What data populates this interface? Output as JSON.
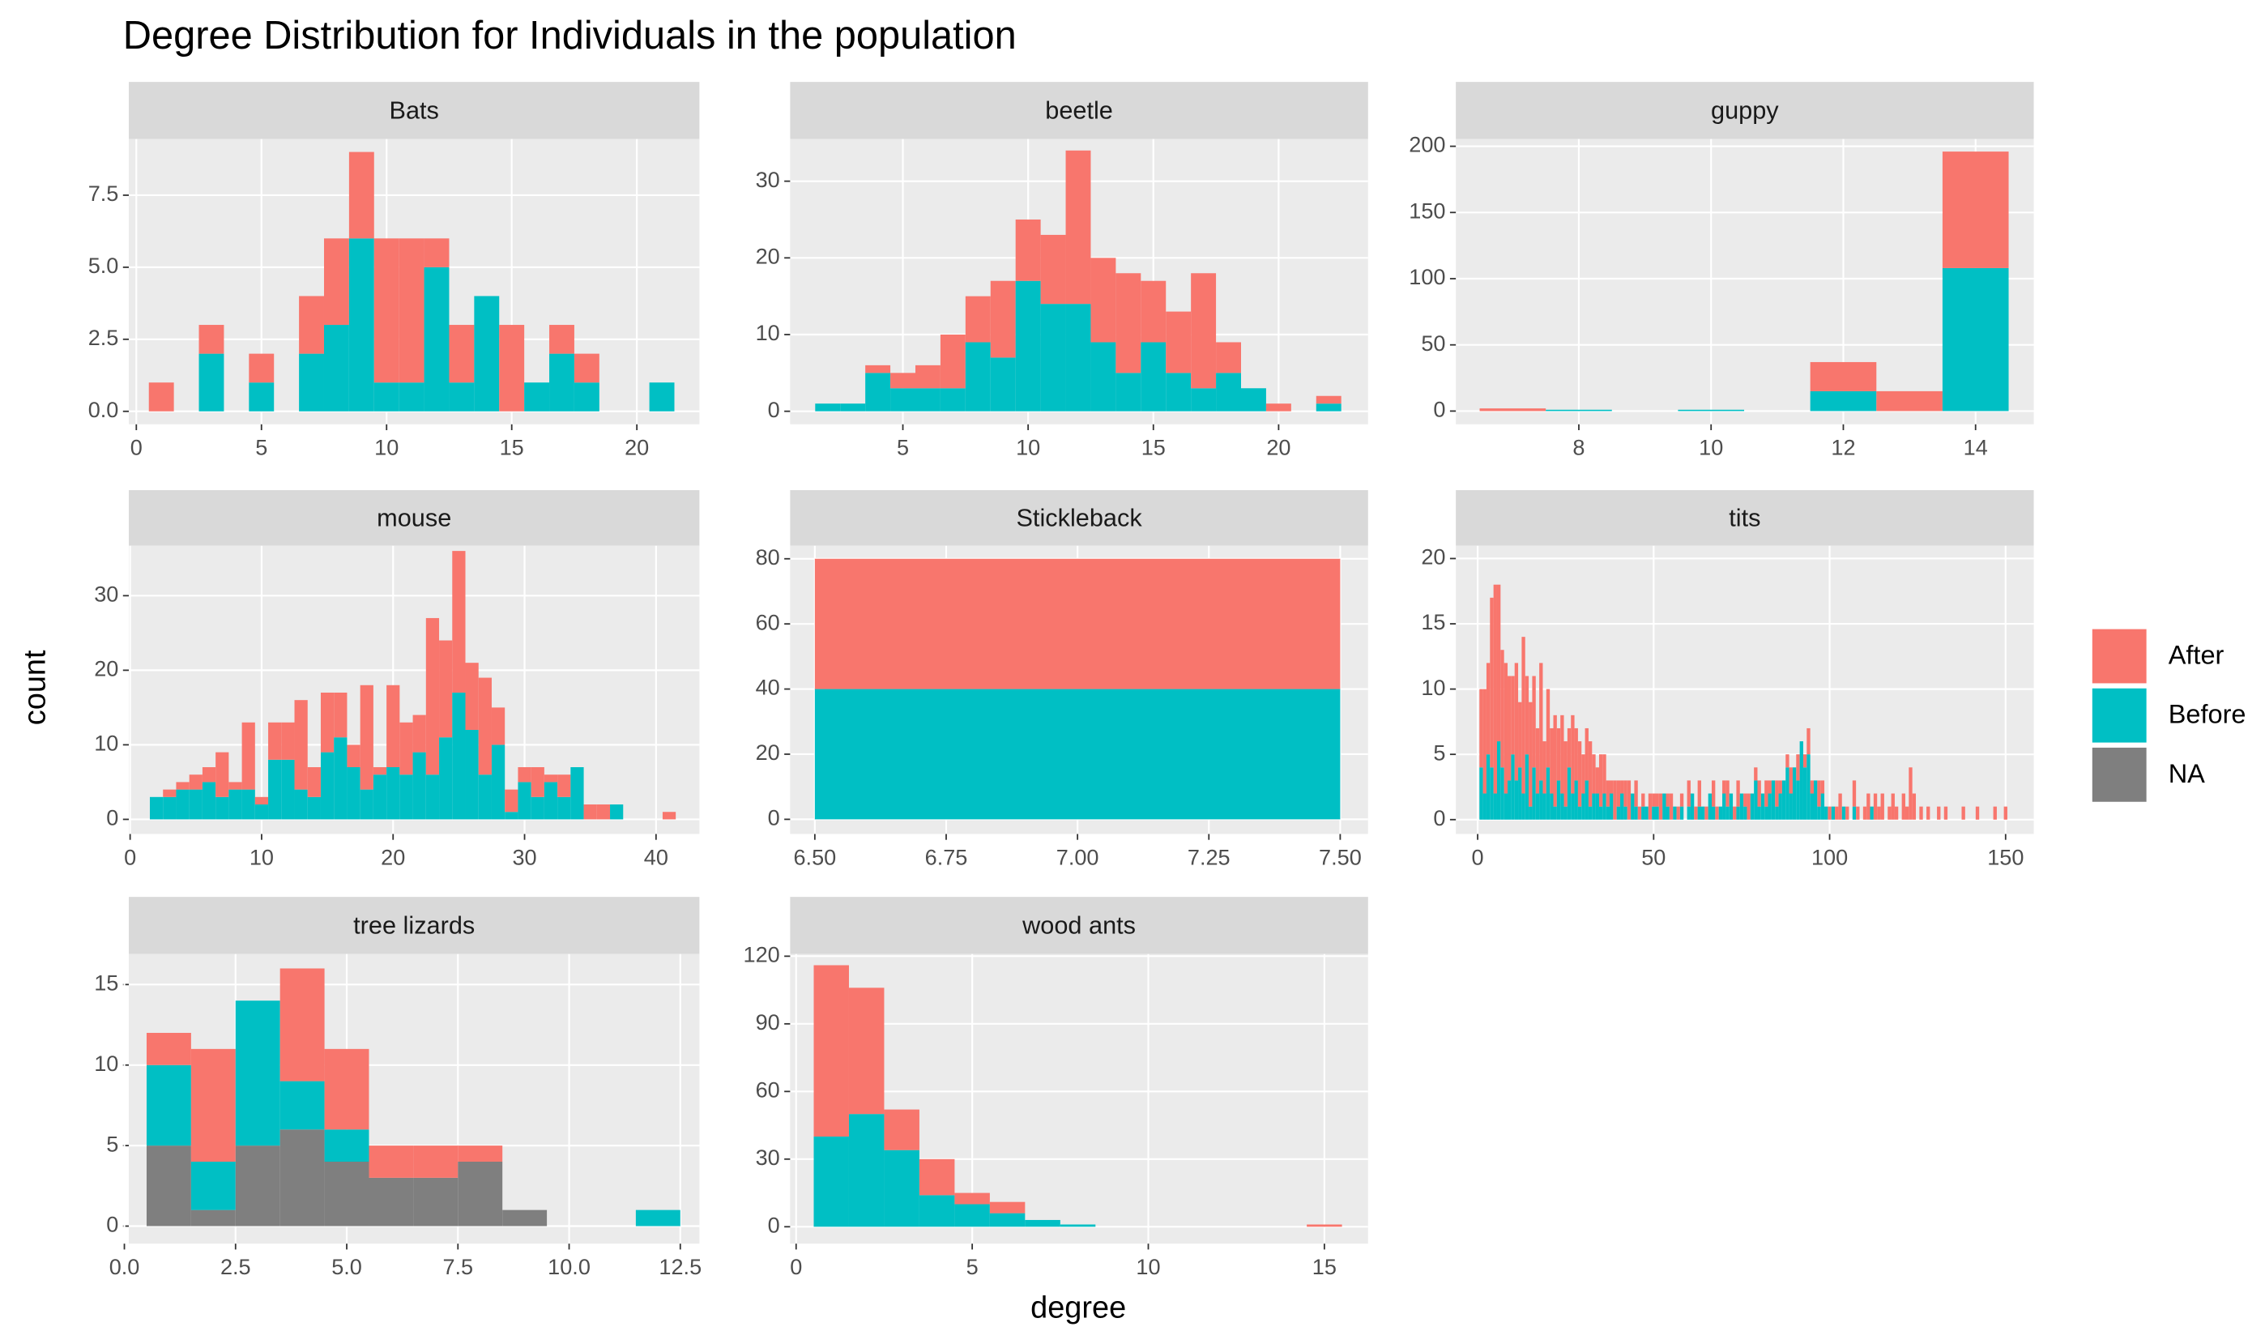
{
  "title": "Degree Distribution for Individuals in the population",
  "x_label": "degree",
  "y_label": "count",
  "chart_data": [
    {
      "type": "histogram",
      "title": "Bats",
      "bins": [
        0.5,
        1.5,
        2.5,
        3.5,
        4.5,
        5.5,
        6.5,
        7.5,
        8.5,
        9.5,
        10.5,
        11.5,
        12.5,
        13.5,
        14.5,
        15.5,
        16.5,
        17.5,
        18.5,
        19.5,
        20.5,
        21.5
      ],
      "series": [
        {
          "name": "After",
          "color": "#F8766D",
          "values": [
            1,
            0,
            1,
            0,
            1,
            0,
            2,
            3,
            3,
            5,
            5,
            1,
            2,
            0,
            3,
            0,
            1,
            1,
            0,
            0,
            0
          ]
        },
        {
          "name": "Before",
          "color": "#00BFC4",
          "values": [
            0,
            0,
            2,
            0,
            1,
            0,
            2,
            3,
            6,
            1,
            1,
            5,
            1,
            4,
            0,
            1,
            2,
            1,
            0,
            0,
            1
          ]
        }
      ],
      "xlim": [
        -0.3,
        22.5
      ],
      "ylim": [
        -0.45,
        9.45
      ],
      "xticks": [
        0,
        5,
        10,
        15,
        20
      ],
      "yticks": [
        {
          "value": 0,
          "label": "0.0"
        },
        {
          "value": 2.5,
          "label": "2.5"
        },
        {
          "value": 5,
          "label": "5.0"
        },
        {
          "value": 7.5,
          "label": "7.5"
        }
      ]
    },
    {
      "type": "histogram",
      "title": "beetle",
      "bins": [
        1.5,
        2.5,
        3.5,
        4.5,
        5.5,
        6.5,
        7.5,
        8.5,
        9.5,
        10.5,
        11.5,
        12.5,
        13.5,
        14.5,
        15.5,
        16.5,
        17.5,
        18.5,
        19.5,
        20.5,
        21.5,
        22.5
      ],
      "series": [
        {
          "name": "After",
          "color": "#F8766D",
          "values": [
            0,
            0,
            1,
            2,
            3,
            7,
            6,
            10,
            8,
            9,
            20,
            11,
            13,
            8,
            8,
            15,
            4,
            0,
            1,
            0,
            1
          ]
        },
        {
          "name": "Before",
          "color": "#00BFC4",
          "values": [
            1,
            1,
            5,
            3,
            3,
            3,
            9,
            7,
            17,
            14,
            14,
            9,
            5,
            9,
            5,
            3,
            5,
            3,
            0,
            0,
            1
          ]
        }
      ],
      "xlim": [
        0.5,
        23.57
      ],
      "ylim": [
        -1.7,
        35.5
      ],
      "xticks": [
        5,
        10,
        15,
        20
      ],
      "yticks": [
        0,
        10,
        20,
        30
      ]
    },
    {
      "type": "histogram",
      "title": "guppy",
      "bins": [
        6.5,
        7.5,
        8.5,
        9.5,
        10.5,
        11.5,
        12.5,
        13.5,
        14.5
      ],
      "series": [
        {
          "name": "After",
          "color": "#F8766D",
          "values": [
            2,
            0,
            0,
            0,
            0,
            22,
            15,
            88
          ]
        },
        {
          "name": "Before",
          "color": "#00BFC4",
          "values": [
            0,
            1,
            0,
            1,
            0,
            15,
            0,
            108
          ]
        }
      ],
      "xlim": [
        6.14,
        14.88
      ],
      "ylim": [
        -10,
        205.5
      ],
      "xticks": [
        8,
        10,
        12,
        14
      ],
      "yticks": [
        0,
        50,
        100,
        150,
        200
      ]
    },
    {
      "type": "histogram",
      "title": "mouse",
      "bins": [
        1.5,
        2.5,
        3.5,
        4.5,
        5.5,
        6.5,
        7.5,
        8.5,
        9.5,
        10.5,
        11.5,
        12.5,
        13.5,
        14.5,
        15.5,
        16.5,
        17.5,
        18.5,
        19.5,
        20.5,
        21.5,
        22.5,
        23.5,
        24.5,
        25.5,
        26.5,
        27.5,
        28.5,
        29.5,
        30.5,
        31.5,
        32.5,
        33.5,
        34.5,
        35.5,
        36.5,
        37.5,
        38.5,
        39.5,
        40.5,
        41.5
      ],
      "series": [
        {
          "name": "After",
          "color": "#F8766D",
          "values": [
            0,
            1,
            1,
            2,
            2,
            6,
            1,
            9,
            1,
            5,
            5,
            12,
            4,
            8,
            6,
            3,
            14,
            1,
            11,
            7,
            5,
            21,
            13,
            19,
            9,
            13,
            5,
            3,
            2,
            4,
            1,
            3,
            0,
            2,
            2,
            0,
            0,
            0,
            0,
            1
          ]
        },
        {
          "name": "Before",
          "color": "#00BFC4",
          "values": [
            3,
            3,
            4,
            4,
            5,
            3,
            4,
            4,
            2,
            8,
            8,
            4,
            3,
            9,
            11,
            7,
            4,
            6,
            7,
            6,
            9,
            6,
            11,
            17,
            12,
            6,
            10,
            1,
            5,
            3,
            5,
            3,
            7,
            0,
            0,
            2,
            0,
            0,
            0,
            0
          ]
        }
      ],
      "xlim": [
        -0.1,
        43.3
      ],
      "ylim": [
        -1.96,
        36.7
      ],
      "xticks": [
        0,
        10,
        20,
        30,
        40
      ],
      "yticks": [
        0,
        10,
        20,
        30
      ]
    },
    {
      "type": "histogram",
      "title": "Stickleback",
      "bins": [
        6.5,
        7.5
      ],
      "series": [
        {
          "name": "After",
          "color": "#F8766D",
          "values": [
            40
          ]
        },
        {
          "name": "Before",
          "color": "#00BFC4",
          "values": [
            40
          ]
        }
      ],
      "xlim": [
        6.453,
        7.553
      ],
      "ylim": [
        -4.5,
        84
      ],
      "xticks": [
        {
          "value": 6.5,
          "label": "6.50"
        },
        6.75,
        {
          "value": 7,
          "label": "7.00"
        },
        7.25,
        {
          "value": 7.5,
          "label": "7.50"
        }
      ],
      "yticks": [
        0,
        20,
        40,
        60,
        80
      ]
    },
    {
      "type": "histogram",
      "title": "tits",
      "bins": [
        0.5,
        1.5,
        2.5,
        3.5,
        4.5,
        5.5,
        6.5,
        7.5,
        8.5,
        9.5,
        10.5,
        11.5,
        12.5,
        13.5,
        14.5,
        15.5,
        16.5,
        17.5,
        18.5,
        19.5,
        20.5,
        21.5,
        22.5,
        23.5,
        24.5,
        25.5,
        26.5,
        27.5,
        28.5,
        29.5,
        30.5,
        31.5,
        32.5,
        33.5,
        34.5,
        35.5,
        36.5,
        37.5,
        38.5,
        39.5,
        40.5,
        41.5,
        42.5,
        43.5,
        44.5,
        45.5,
        46.5,
        47.5,
        48.5,
        49.5,
        50.5,
        51.5,
        52.5,
        53.5,
        54.5,
        55.5,
        56.5,
        57.5,
        58.5,
        59.5,
        60.5,
        61.5,
        62.5,
        63.5,
        64.5,
        65.5,
        66.5,
        67.5,
        68.5,
        69.5,
        70.5,
        71.5,
        72.5,
        73.5,
        74.5,
        75.5,
        76.5,
        77.5,
        78.5,
        79.5,
        80.5,
        81.5,
        82.5,
        83.5,
        84.5,
        85.5,
        86.5,
        87.5,
        88.5,
        89.5,
        90.5,
        91.5,
        92.5,
        93.5,
        94.5,
        95.5,
        96.5,
        97.5,
        98.5,
        99.5,
        100.5,
        101.5,
        102.5,
        103.5,
        104.5,
        105.5,
        106.5,
        107.5,
        108.5,
        109.5,
        110.5,
        111.5,
        112.5,
        113.5,
        114.5,
        115.5,
        116.5,
        117.5,
        118.5,
        119.5,
        120.5,
        121.5,
        122.5,
        123.5,
        124.5,
        125.5,
        126.5,
        127.5,
        128.5,
        129.5,
        130.5,
        131.5,
        132.5,
        133.5,
        134.5,
        135.5,
        136.5,
        137.5,
        138.5,
        139.5,
        140.5,
        141.5,
        142.5,
        143.5,
        144.5,
        145.5,
        146.5,
        147.5,
        148.5,
        149.5,
        150.5
      ],
      "series": [
        {
          "name": "After",
          "color": "#F8766D",
          "values": [
            6,
            8,
            7,
            13,
            16,
            12,
            9,
            10,
            8,
            6,
            9,
            5,
            12,
            6,
            8,
            7,
            5,
            9,
            4,
            6,
            5,
            7,
            4,
            6,
            5,
            3,
            6,
            4,
            5,
            3,
            4,
            5,
            3,
            2,
            4,
            3,
            2,
            1,
            3,
            2,
            1,
            2,
            3,
            0,
            2,
            1,
            1,
            0,
            2,
            1,
            1,
            2,
            0,
            1,
            2,
            0,
            1,
            1,
            0,
            2,
            0,
            1,
            2,
            0,
            1,
            0,
            2,
            1,
            0,
            1,
            2,
            0,
            1,
            2,
            0,
            1,
            2,
            0,
            1,
            2,
            0,
            2,
            1,
            0,
            2,
            1,
            0,
            1,
            2,
            0,
            2,
            0,
            1,
            2,
            1,
            0,
            2,
            1,
            0,
            1,
            0,
            1,
            2,
            0,
            1,
            0,
            2,
            1,
            0,
            1,
            2,
            0,
            2,
            1,
            2,
            0,
            1,
            2,
            1,
            0,
            2,
            1,
            4,
            2,
            0,
            1,
            0,
            1,
            0,
            0,
            1,
            0,
            1,
            0,
            0,
            0,
            0,
            1,
            0,
            0,
            0,
            1,
            0,
            0,
            0,
            0,
            1,
            0,
            0,
            1
          ]
        },
        {
          "name": "Before",
          "color": "#00BFC4",
          "values": [
            4,
            2,
            5,
            4,
            2,
            6,
            4,
            2,
            3,
            5,
            3,
            4,
            2,
            5,
            1,
            4,
            2,
            3,
            2,
            4,
            2,
            1,
            3,
            2,
            1,
            4,
            2,
            3,
            1,
            2,
            3,
            1,
            2,
            2,
            1,
            2,
            1,
            2,
            0,
            1,
            2,
            1,
            0,
            2,
            1,
            0,
            1,
            1,
            0,
            1,
            1,
            0,
            2,
            1,
            0,
            1,
            0,
            1,
            0,
            1,
            2,
            0,
            1,
            1,
            0,
            2,
            1,
            0,
            1,
            2,
            1,
            2,
            0,
            1,
            2,
            1,
            0,
            2,
            3,
            1,
            2,
            1,
            2,
            3,
            1,
            2,
            3,
            4,
            2,
            4,
            3,
            6,
            4,
            5,
            2,
            3,
            1,
            2,
            1,
            0,
            1,
            0,
            0,
            1,
            0,
            0,
            1,
            0,
            0,
            0,
            0,
            1,
            0,
            0,
            0,
            0,
            0,
            0,
            0,
            0,
            0,
            0,
            0,
            0,
            0,
            0,
            0,
            0,
            0,
            0,
            0,
            0,
            0,
            0,
            0,
            0,
            0,
            0,
            0,
            0,
            0,
            0,
            0,
            0,
            0,
            0,
            0,
            0,
            0,
            0
          ]
        }
      ],
      "xlim": [
        -6.2,
        158
      ],
      "ylim": [
        -1.1,
        20.98
      ],
      "xticks": [
        0,
        50,
        100,
        150
      ],
      "yticks": [
        0,
        5,
        10,
        15,
        20
      ]
    },
    {
      "type": "histogram",
      "title": "tree lizards",
      "bins": [
        0.5,
        1.5,
        2.5,
        3.5,
        4.5,
        5.5,
        6.5,
        7.5,
        8.5,
        9.5,
        10.5,
        11.5,
        12.5
      ],
      "series": [
        {
          "name": "After",
          "color": "#F8766D",
          "values": [
            2,
            7,
            0,
            7,
            5,
            2,
            2,
            1,
            0,
            0,
            0,
            0
          ]
        },
        {
          "name": "Before",
          "color": "#00BFC4",
          "values": [
            5,
            3,
            9,
            3,
            2,
            0,
            0,
            0,
            0,
            0,
            0,
            1
          ]
        },
        {
          "name": "NA",
          "color": "#7F7F7F",
          "values": [
            5,
            1,
            5,
            6,
            4,
            3,
            3,
            4,
            1,
            0,
            0,
            0
          ]
        }
      ],
      "xlim": [
        0.1,
        12.93
      ],
      "ylim": [
        -1.09,
        16.9
      ],
      "xticks": [
        {
          "value": 0,
          "label": "0.0"
        },
        2.5,
        {
          "value": 5,
          "label": "5.0"
        },
        7.5,
        {
          "value": 10,
          "label": "10.0"
        },
        12.5
      ],
      "yticks": [
        0,
        5,
        10,
        15
      ]
    },
    {
      "type": "histogram",
      "title": "wood ants",
      "bins": [
        0.5,
        1.5,
        2.5,
        3.5,
        4.5,
        5.5,
        6.5,
        7.5,
        8.5,
        9.5,
        10.5,
        11.5,
        12.5,
        13.5,
        14.5,
        15.5
      ],
      "series": [
        {
          "name": "After",
          "color": "#F8766D",
          "values": [
            76,
            56,
            18,
            16,
            5,
            5,
            0,
            0,
            0,
            0,
            0,
            0,
            0,
            0,
            1
          ]
        },
        {
          "name": "Before",
          "color": "#00BFC4",
          "values": [
            40,
            50,
            34,
            14,
            10,
            6,
            3,
            1,
            0,
            0,
            0,
            0,
            0,
            0,
            0
          ]
        }
      ],
      "xlim": [
        -0.17,
        16.24
      ],
      "ylim": [
        -7.5,
        121
      ],
      "xticks": [
        0,
        5,
        10,
        15
      ],
      "yticks": [
        0,
        30,
        60,
        90,
        120
      ]
    }
  ]
}
